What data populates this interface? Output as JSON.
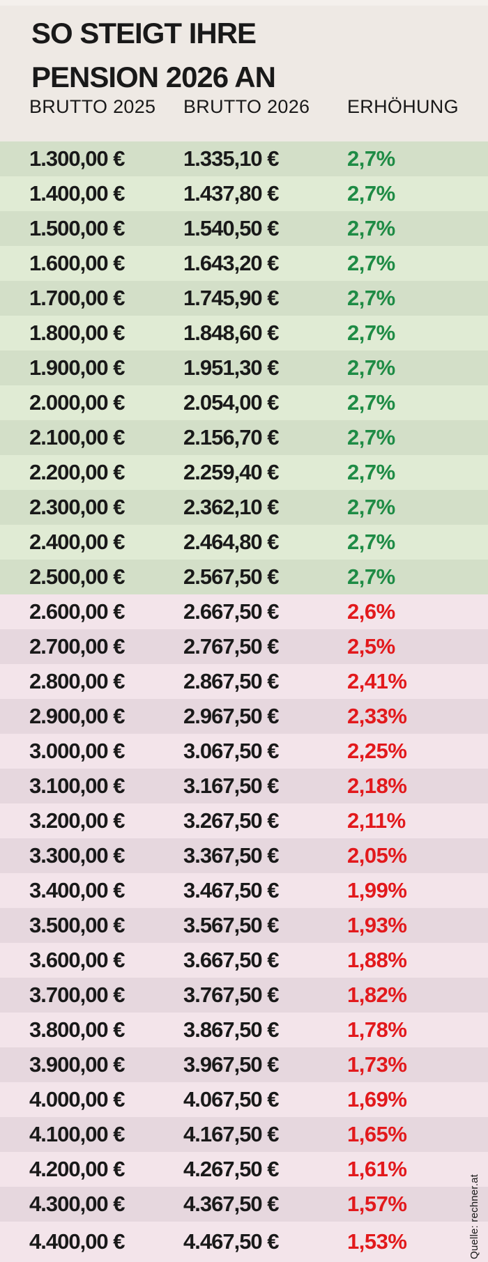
{
  "title": {
    "line1": "SO STEIGT IHRE",
    "line2": "PENSION 2026 AN"
  },
  "source": "Quelle: rechner.at",
  "colors": {
    "page_bg": "#EEE9E4",
    "top_strip": "#F4F0EC",
    "text_dark": "#191919",
    "row_green_dark": "#D3DFC8",
    "row_green_light": "#E0EBD4",
    "row_pink_dark": "#E6D7DE",
    "row_pink_light": "#F3E4EA",
    "pct_green": "#1E8B45",
    "pct_red": "#E2191C"
  },
  "chart_data": {
    "type": "table",
    "title": "SO STEIGT IHRE PENSION 2026 AN",
    "columns": [
      "BRUTTO 2025",
      "BRUTTO 2026",
      "ERHÖHUNG"
    ],
    "rows": [
      {
        "brutto_2025": "1.300,00 €",
        "brutto_2026": "1.335,10 €",
        "erhoehung": "2,7%",
        "group": "green"
      },
      {
        "brutto_2025": "1.400,00 €",
        "brutto_2026": "1.437,80 €",
        "erhoehung": "2,7%",
        "group": "green"
      },
      {
        "brutto_2025": "1.500,00 €",
        "brutto_2026": "1.540,50 €",
        "erhoehung": "2,7%",
        "group": "green"
      },
      {
        "brutto_2025": "1.600,00 €",
        "brutto_2026": "1.643,20 €",
        "erhoehung": "2,7%",
        "group": "green"
      },
      {
        "brutto_2025": "1.700,00 €",
        "brutto_2026": "1.745,90 €",
        "erhoehung": "2,7%",
        "group": "green"
      },
      {
        "brutto_2025": "1.800,00 €",
        "brutto_2026": "1.848,60 €",
        "erhoehung": "2,7%",
        "group": "green"
      },
      {
        "brutto_2025": "1.900,00 €",
        "brutto_2026": "1.951,30 €",
        "erhoehung": "2,7%",
        "group": "green"
      },
      {
        "brutto_2025": "2.000,00 €",
        "brutto_2026": "2.054,00 €",
        "erhoehung": "2,7%",
        "group": "green"
      },
      {
        "brutto_2025": "2.100,00 €",
        "brutto_2026": "2.156,70 €",
        "erhoehung": "2,7%",
        "group": "green"
      },
      {
        "brutto_2025": "2.200,00 €",
        "brutto_2026": "2.259,40 €",
        "erhoehung": "2,7%",
        "group": "green"
      },
      {
        "brutto_2025": "2.300,00 €",
        "brutto_2026": "2.362,10 €",
        "erhoehung": "2,7%",
        "group": "green"
      },
      {
        "brutto_2025": "2.400,00 €",
        "brutto_2026": "2.464,80 €",
        "erhoehung": "2,7%",
        "group": "green"
      },
      {
        "brutto_2025": "2.500,00 €",
        "brutto_2026": "2.567,50 €",
        "erhoehung": "2,7%",
        "group": "green"
      },
      {
        "brutto_2025": "2.600,00 €",
        "brutto_2026": "2.667,50 €",
        "erhoehung": "2,6%",
        "group": "red"
      },
      {
        "brutto_2025": "2.700,00 €",
        "brutto_2026": "2.767,50 €",
        "erhoehung": "2,5%",
        "group": "red"
      },
      {
        "brutto_2025": "2.800,00 €",
        "brutto_2026": "2.867,50 €",
        "erhoehung": "2,41%",
        "group": "red"
      },
      {
        "brutto_2025": "2.900,00 €",
        "brutto_2026": "2.967,50 €",
        "erhoehung": "2,33%",
        "group": "red"
      },
      {
        "brutto_2025": "3.000,00 €",
        "brutto_2026": "3.067,50 €",
        "erhoehung": "2,25%",
        "group": "red"
      },
      {
        "brutto_2025": "3.100,00 €",
        "brutto_2026": "3.167,50 €",
        "erhoehung": "2,18%",
        "group": "red"
      },
      {
        "brutto_2025": "3.200,00 €",
        "brutto_2026": "3.267,50 €",
        "erhoehung": "2,11%",
        "group": "red"
      },
      {
        "brutto_2025": "3.300,00 €",
        "brutto_2026": "3.367,50 €",
        "erhoehung": "2,05%",
        "group": "red"
      },
      {
        "brutto_2025": "3.400,00 €",
        "brutto_2026": "3.467,50 €",
        "erhoehung": "1,99%",
        "group": "red"
      },
      {
        "brutto_2025": "3.500,00 €",
        "brutto_2026": "3.567,50 €",
        "erhoehung": "1,93%",
        "group": "red"
      },
      {
        "brutto_2025": "3.600,00 €",
        "brutto_2026": "3.667,50 €",
        "erhoehung": "1,88%",
        "group": "red"
      },
      {
        "brutto_2025": "3.700,00 €",
        "brutto_2026": "3.767,50 €",
        "erhoehung": "1,82%",
        "group": "red"
      },
      {
        "brutto_2025": "3.800,00 €",
        "brutto_2026": "3.867,50 €",
        "erhoehung": "1,78%",
        "group": "red"
      },
      {
        "brutto_2025": "3.900,00 €",
        "brutto_2026": "3.967,50 €",
        "erhoehung": "1,73%",
        "group": "red"
      },
      {
        "brutto_2025": "4.000,00 €",
        "brutto_2026": "4.067,50 €",
        "erhoehung": "1,69%",
        "group": "red"
      },
      {
        "brutto_2025": "4.100,00 €",
        "brutto_2026": "4.167,50 €",
        "erhoehung": "1,65%",
        "group": "red"
      },
      {
        "brutto_2025": "4.200,00 €",
        "brutto_2026": "4.267,50 €",
        "erhoehung": "1,61%",
        "group": "red"
      },
      {
        "brutto_2025": "4.300,00 €",
        "brutto_2026": "4.367,50 €",
        "erhoehung": "1,57%",
        "group": "red"
      },
      {
        "brutto_2025": "4.400,00 €",
        "brutto_2026": "4.467,50 €",
        "erhoehung": "1,53%",
        "group": "red"
      }
    ]
  }
}
